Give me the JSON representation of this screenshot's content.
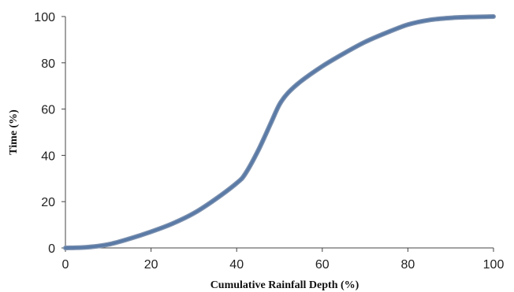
{
  "chart_data": {
    "type": "line",
    "title": "",
    "xlabel": "Cumulative Rainfall Depth (%)",
    "ylabel": "Time (%)",
    "xlim": [
      0,
      100
    ],
    "ylim": [
      0,
      100
    ],
    "x_ticks": [
      "0",
      "20",
      "40",
      "60",
      "80",
      "100"
    ],
    "y_ticks": [
      "0",
      "20",
      "40",
      "60",
      "80",
      "100"
    ],
    "grid": false,
    "legend": "none",
    "series": [
      {
        "color": "#5a7aa6",
        "x": [
          0,
          5,
          10,
          15,
          20,
          25,
          30,
          35,
          40,
          42,
          45,
          48,
          50,
          52,
          55,
          60,
          65,
          70,
          75,
          80,
          85,
          90,
          95,
          100
        ],
        "y": [
          0,
          0.3,
          1.5,
          4,
          7,
          10.5,
          15,
          21,
          28,
          32,
          42,
          54,
          62,
          67,
          72,
          78.5,
          84,
          89,
          93,
          96.5,
          98.5,
          99.4,
          99.8,
          100
        ]
      }
    ]
  }
}
